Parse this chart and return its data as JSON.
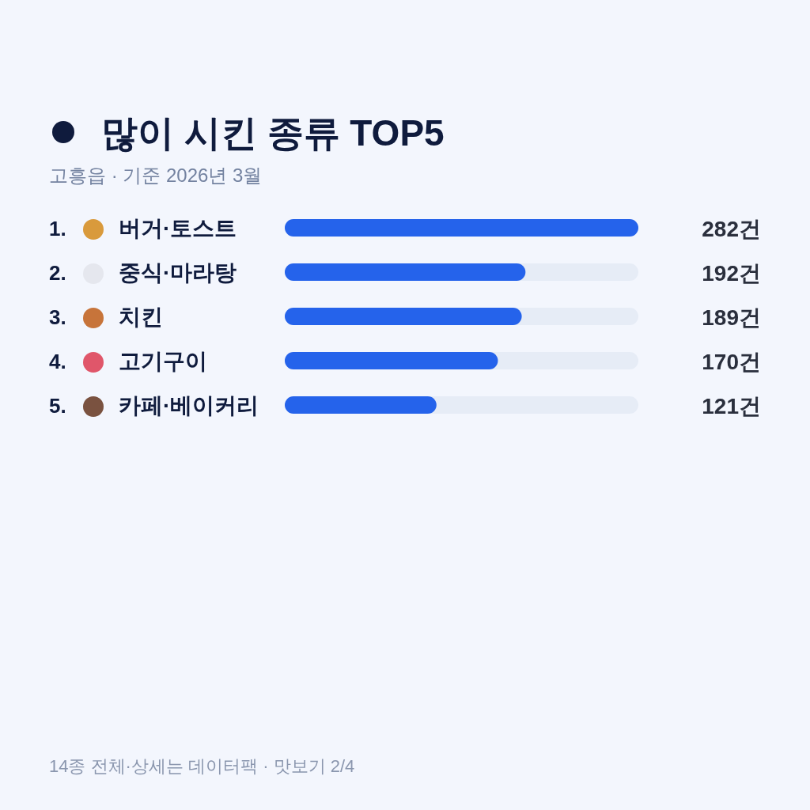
{
  "chart_data": {
    "type": "bar",
    "orientation": "horizontal",
    "title": "많이 시킨 종류 TOP5",
    "subtitle": "고흥읍 · 기준 2026년 3월",
    "categories": [
      "1. 버거·토스트",
      "2. 중식·마라탕",
      "3. 치킨",
      "4. 고기구이",
      "5. 카페·베이커리"
    ],
    "values": [
      282,
      192,
      189,
      170,
      121
    ],
    "value_labels": [
      "282건",
      "192건",
      "189건",
      "170건",
      "121건"
    ],
    "color": "#2563eb",
    "annotations": [
      "14종 전체·상세는 데이터팩 · 맛보기 2/4"
    ]
  }
}
